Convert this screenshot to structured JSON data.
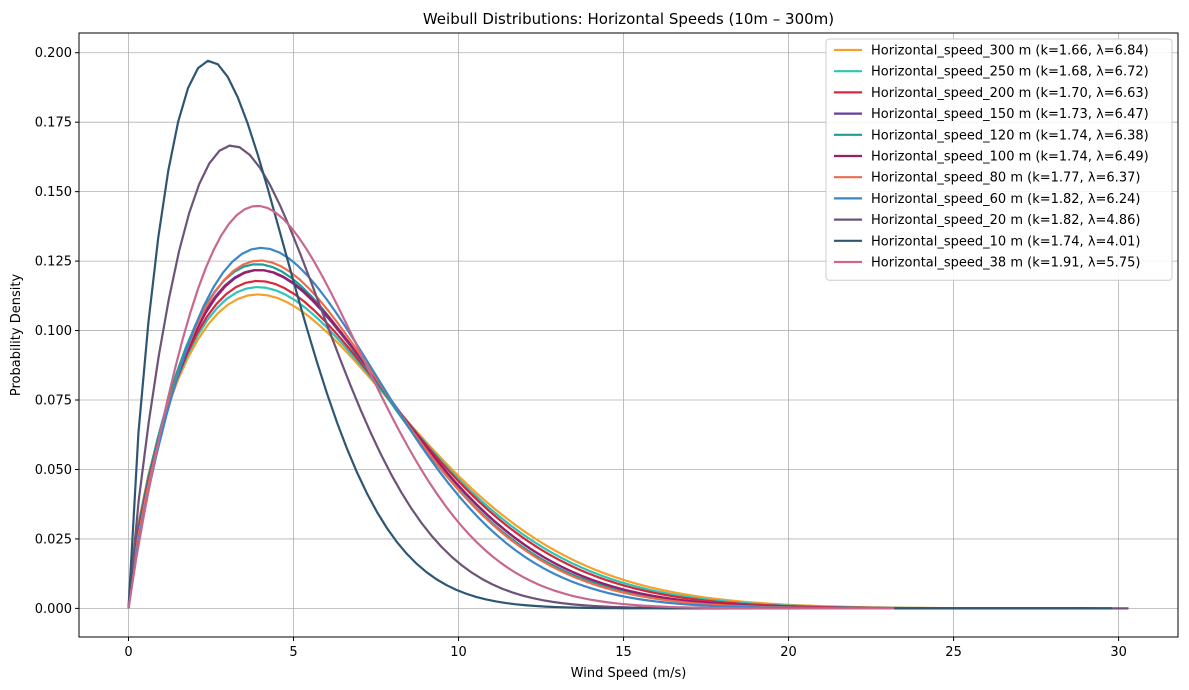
{
  "chart_data": {
    "type": "line",
    "title": "Weibull Distributions: Horizontal Speeds (10m – 300m)",
    "xlabel": "Wind Speed (m/s)",
    "ylabel": "Probability Density",
    "xlim": [
      -1.5,
      31.8
    ],
    "ylim": [
      -0.0103,
      0.2071
    ],
    "xticks": [
      0,
      5,
      10,
      15,
      20,
      25,
      30
    ],
    "xtick_labels": [
      "0",
      "5",
      "10",
      "15",
      "20",
      "25",
      "30"
    ],
    "yticks": [
      0,
      0.025,
      0.05,
      0.075,
      0.1,
      0.125,
      0.15,
      0.175,
      0.2
    ],
    "ytick_labels": [
      "0.000",
      "0.025",
      "0.050",
      "0.075",
      "0.100",
      "0.125",
      "0.150",
      "0.175",
      "0.200"
    ],
    "grid": true,
    "legend_position": "top-right",
    "distribution": "weibull",
    "series": [
      {
        "name": "Horizontal_speed_300 m (k=1.66, λ=6.84)",
        "k": 1.66,
        "lambda": 6.84,
        "x_range": [
          0,
          29.8
        ],
        "color": "#f4a12c"
      },
      {
        "name": "Horizontal_speed_250 m (k=1.68, λ=6.72)",
        "k": 1.68,
        "lambda": 6.72,
        "x_range": [
          0,
          29.5
        ],
        "color": "#2ec4b6"
      },
      {
        "name": "Horizontal_speed_200 m (k=1.70, λ=6.63)",
        "k": 1.7,
        "lambda": 6.63,
        "x_range": [
          0,
          29.3
        ],
        "color": "#d62839"
      },
      {
        "name": "Horizontal_speed_150 m (k=1.73, λ=6.47)",
        "k": 1.73,
        "lambda": 6.47,
        "x_range": [
          0,
          29.0
        ],
        "color": "#6a3d9a"
      },
      {
        "name": "Horizontal_speed_120 m (k=1.74, λ=6.38)",
        "k": 1.74,
        "lambda": 6.38,
        "x_range": [
          0,
          28.8
        ],
        "color": "#1a9e96"
      },
      {
        "name": "Horizontal_speed_100 m (k=1.74, λ=6.49)",
        "k": 1.74,
        "lambda": 6.49,
        "x_range": [
          0,
          29.0
        ],
        "color": "#9b1d6a"
      },
      {
        "name": "Horizontal_speed_80 m (k=1.77, λ=6.37)",
        "k": 1.77,
        "lambda": 6.37,
        "x_range": [
          0,
          28.6
        ],
        "color": "#ee6c4d"
      },
      {
        "name": "Horizontal_speed_60 m (k=1.82, λ=6.24)",
        "k": 1.82,
        "lambda": 6.24,
        "x_range": [
          0,
          28.3
        ],
        "color": "#3a86c8"
      },
      {
        "name": "Horizontal_speed_20 m (k=1.82, λ=4.86)",
        "k": 1.82,
        "lambda": 4.86,
        "x_range": [
          0,
          30.3
        ],
        "color": "#6d5279"
      },
      {
        "name": "Horizontal_speed_10 m (k=1.74, λ=4.01)",
        "k": 1.74,
        "lambda": 4.01,
        "x_range": [
          0,
          29.8
        ],
        "color": "#2e5673"
      },
      {
        "name": "Horizontal_speed_38 m (k=1.91, λ=5.75)",
        "k": 1.91,
        "lambda": 5.75,
        "x_range": [
          0,
          23.2
        ],
        "color": "#c8688e"
      }
    ]
  }
}
